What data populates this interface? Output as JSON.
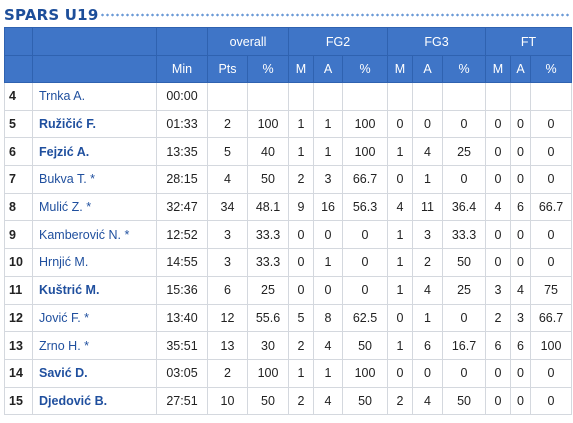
{
  "team": {
    "title": "SPARS U19"
  },
  "header": {
    "groups": [
      "overall",
      "FG2",
      "FG3",
      "FT"
    ],
    "columns": [
      "Min",
      "Pts",
      "%",
      "M",
      "A",
      "%",
      "M",
      "A",
      "%",
      "M",
      "A",
      "%"
    ]
  },
  "players": [
    {
      "no": "4",
      "name": "Trnka A.",
      "starter": false,
      "min": "00:00",
      "stats": [
        "",
        "",
        "",
        "",
        "",
        "",
        "",
        "",
        "",
        "",
        ""
      ]
    },
    {
      "no": "5",
      "name": "Ružičić F.",
      "starter": true,
      "min": "01:33",
      "stats": [
        "2",
        "100",
        "1",
        "1",
        "100",
        "0",
        "0",
        "0",
        "0",
        "0",
        "0"
      ]
    },
    {
      "no": "6",
      "name": "Fejzić A.",
      "starter": true,
      "min": "13:35",
      "stats": [
        "5",
        "40",
        "1",
        "1",
        "100",
        "1",
        "4",
        "25",
        "0",
        "0",
        "0"
      ]
    },
    {
      "no": "7",
      "name": "Bukva T. *",
      "starter": false,
      "min": "28:15",
      "stats": [
        "4",
        "50",
        "2",
        "3",
        "66.7",
        "0",
        "1",
        "0",
        "0",
        "0",
        "0"
      ]
    },
    {
      "no": "8",
      "name": "Mulić Z. *",
      "starter": false,
      "min": "32:47",
      "stats": [
        "34",
        "48.1",
        "9",
        "16",
        "56.3",
        "4",
        "11",
        "36.4",
        "4",
        "6",
        "66.7"
      ]
    },
    {
      "no": "9",
      "name": "Kamberović N. *",
      "starter": false,
      "min": "12:52",
      "stats": [
        "3",
        "33.3",
        "0",
        "0",
        "0",
        "1",
        "3",
        "33.3",
        "0",
        "0",
        "0"
      ]
    },
    {
      "no": "10",
      "name": "Hrnjić M.",
      "starter": false,
      "min": "14:55",
      "stats": [
        "3",
        "33.3",
        "0",
        "1",
        "0",
        "1",
        "2",
        "50",
        "0",
        "0",
        "0"
      ]
    },
    {
      "no": "11",
      "name": "Kuštrić M.",
      "starter": true,
      "min": "15:36",
      "stats": [
        "6",
        "25",
        "0",
        "0",
        "0",
        "1",
        "4",
        "25",
        "3",
        "4",
        "75"
      ]
    },
    {
      "no": "12",
      "name": "Jović F. *",
      "starter": false,
      "min": "13:40",
      "stats": [
        "12",
        "55.6",
        "5",
        "8",
        "62.5",
        "0",
        "1",
        "0",
        "2",
        "3",
        "66.7"
      ]
    },
    {
      "no": "13",
      "name": "Zrno H. *",
      "starter": false,
      "min": "35:51",
      "stats": [
        "13",
        "30",
        "2",
        "4",
        "50",
        "1",
        "6",
        "16.7",
        "6",
        "6",
        "100"
      ]
    },
    {
      "no": "14",
      "name": "Savić D.",
      "starter": true,
      "min": "03:05",
      "stats": [
        "2",
        "100",
        "1",
        "1",
        "100",
        "0",
        "0",
        "0",
        "0",
        "0",
        "0"
      ]
    },
    {
      "no": "15",
      "name": "Djedović B.",
      "starter": true,
      "min": "27:51",
      "stats": [
        "10",
        "50",
        "2",
        "4",
        "50",
        "2",
        "4",
        "50",
        "0",
        "0",
        "0"
      ]
    }
  ]
}
